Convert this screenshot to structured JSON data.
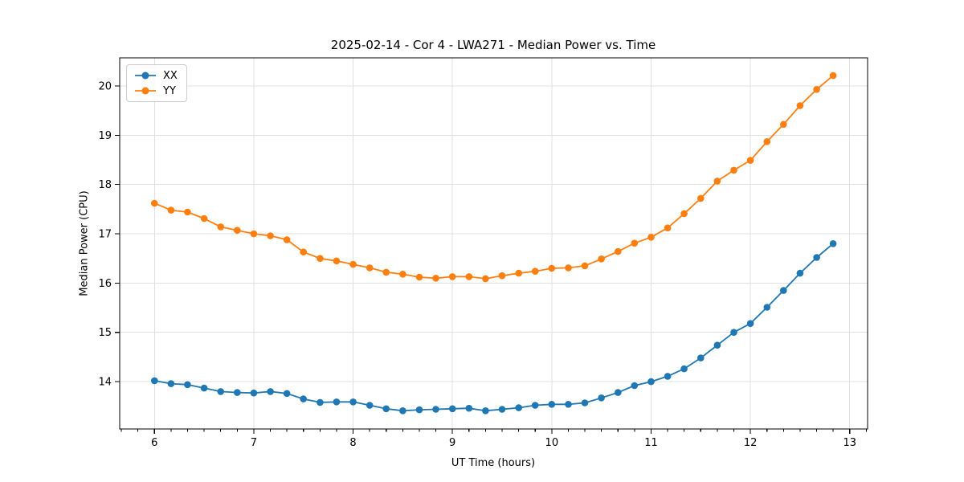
{
  "chart_data": {
    "type": "line",
    "title": "2025-02-14 - Cor 4 - LWA271 - Median Power vs. Time",
    "xlabel": "UT Time (hours)",
    "ylabel": "Median Power (CPU)",
    "xlim": [
      5.65,
      13.18
    ],
    "ylim": [
      13.04,
      20.57
    ],
    "xticks": [
      6,
      7,
      8,
      9,
      10,
      11,
      12,
      13
    ],
    "yticks": [
      14,
      15,
      16,
      17,
      18,
      19,
      20
    ],
    "x_minor_step_hours": 0.1667,
    "grid": true,
    "legend_position": "upper-left",
    "marker": "circle",
    "x": [
      6.0,
      6.167,
      6.333,
      6.5,
      6.667,
      6.833,
      7.0,
      7.167,
      7.333,
      7.5,
      7.667,
      7.833,
      8.0,
      8.167,
      8.333,
      8.5,
      8.667,
      8.833,
      9.0,
      9.167,
      9.333,
      9.5,
      9.667,
      9.833,
      10.0,
      10.167,
      10.333,
      10.5,
      10.667,
      10.833,
      11.0,
      11.167,
      11.333,
      11.5,
      11.667,
      11.833,
      12.0,
      12.167,
      12.333,
      12.5,
      12.667,
      12.833
    ],
    "series": [
      {
        "name": "XX",
        "color": "#1f77b4",
        "values": [
          14.02,
          13.96,
          13.94,
          13.87,
          13.8,
          13.78,
          13.77,
          13.8,
          13.76,
          13.65,
          13.58,
          13.59,
          13.59,
          13.52,
          13.45,
          13.41,
          13.43,
          13.44,
          13.45,
          13.46,
          13.41,
          13.44,
          13.47,
          13.52,
          13.54,
          13.54,
          13.57,
          13.67,
          13.78,
          13.92,
          14.0,
          14.11,
          14.26,
          14.48,
          14.74,
          15.0,
          15.18,
          15.51,
          15.85,
          16.2,
          16.52,
          16.8
        ]
      },
      {
        "name": "YY",
        "color": "#ff7f0e",
        "values": [
          17.62,
          17.48,
          17.44,
          17.31,
          17.14,
          17.07,
          17.0,
          16.96,
          16.88,
          16.63,
          16.5,
          16.45,
          16.38,
          16.31,
          16.22,
          16.18,
          16.12,
          16.1,
          16.13,
          16.13,
          16.09,
          16.15,
          16.2,
          16.24,
          16.3,
          16.31,
          16.35,
          16.49,
          16.64,
          16.81,
          16.93,
          17.12,
          17.41,
          17.72,
          18.07,
          18.29,
          18.49,
          18.87,
          19.22,
          19.6,
          19.93,
          20.21
        ]
      }
    ]
  },
  "colors": {
    "grid": "#e0e0e0",
    "spine": "#000000",
    "tick_text": "#000000",
    "background": "#ffffff"
  }
}
